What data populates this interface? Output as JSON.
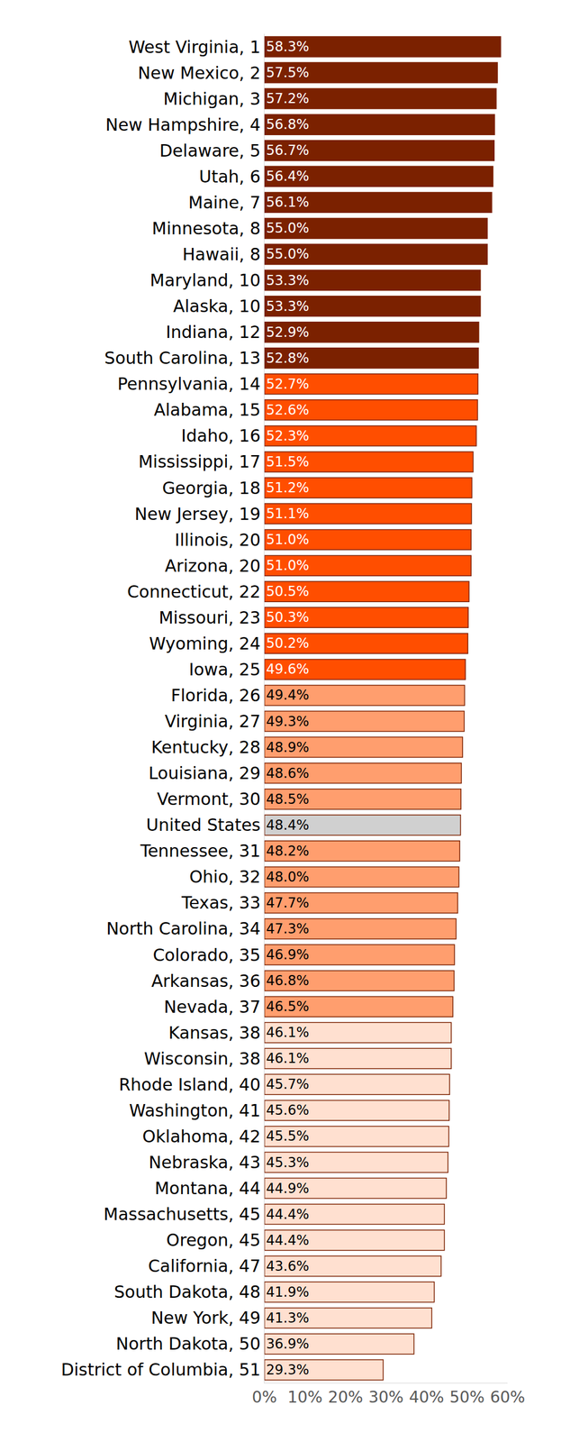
{
  "chart_data": {
    "type": "bar",
    "orientation": "horizontal",
    "categories": [
      "West Virginia, 1",
      "New Mexico, 2",
      "Michigan, 3",
      "New Hampshire, 4",
      "Delaware, 5",
      "Utah, 6",
      "Maine, 7",
      "Minnesota, 8",
      "Hawaii, 8",
      "Maryland, 10",
      "Alaska, 10",
      "Indiana, 12",
      "South Carolina, 13",
      "Pennsylvania, 14",
      "Alabama, 15",
      "Idaho, 16",
      "Mississippi, 17",
      "Georgia, 18",
      "New Jersey, 19",
      "Illinois, 20",
      "Arizona, 20",
      "Connecticut, 22",
      "Missouri, 23",
      "Wyoming, 24",
      "Iowa, 25",
      "Florida, 26",
      "Virginia, 27",
      "Kentucky, 28",
      "Louisiana, 29",
      "Vermont, 30",
      "United States",
      "Tennessee, 31",
      "Ohio, 32",
      "Texas, 33",
      "North Carolina, 34",
      "Colorado, 35",
      "Arkansas, 36",
      "Nevada, 37",
      "Kansas, 38",
      "Wisconsin, 38",
      "Rhode Island, 40",
      "Washington, 41",
      "Oklahoma, 42",
      "Nebraska, 43",
      "Montana, 44",
      "Massachusetts, 45",
      "Oregon, 45",
      "California, 47",
      "South Dakota, 48",
      "New York, 49",
      "North Dakota, 50",
      "District of Columbia, 51"
    ],
    "values": [
      58.3,
      57.5,
      57.2,
      56.8,
      56.7,
      56.4,
      56.1,
      55.0,
      55.0,
      53.3,
      53.3,
      52.9,
      52.8,
      52.7,
      52.6,
      52.3,
      51.5,
      51.2,
      51.1,
      51.0,
      51.0,
      50.5,
      50.3,
      50.2,
      49.6,
      49.4,
      49.3,
      48.9,
      48.6,
      48.5,
      48.4,
      48.2,
      48.0,
      47.7,
      47.3,
      46.9,
      46.8,
      46.5,
      46.1,
      46.1,
      45.7,
      45.6,
      45.5,
      45.3,
      44.9,
      44.4,
      44.4,
      43.6,
      41.9,
      41.3,
      36.9,
      29.3
    ],
    "value_labels": [
      "58.3%",
      "57.5%",
      "57.2%",
      "56.8%",
      "56.7%",
      "56.4%",
      "56.1%",
      "55.0%",
      "55.0%",
      "53.3%",
      "53.3%",
      "52.9%",
      "52.8%",
      "52.7%",
      "52.6%",
      "52.3%",
      "51.5%",
      "51.2%",
      "51.1%",
      "51.0%",
      "51.0%",
      "50.5%",
      "50.3%",
      "50.2%",
      "49.6%",
      "49.4%",
      "49.3%",
      "48.9%",
      "48.6%",
      "48.5%",
      "48.4%",
      "48.2%",
      "48.0%",
      "47.7%",
      "47.3%",
      "46.9%",
      "46.8%",
      "46.5%",
      "46.1%",
      "46.1%",
      "45.7%",
      "45.6%",
      "45.5%",
      "45.3%",
      "44.9%",
      "44.4%",
      "44.4%",
      "43.6%",
      "41.9%",
      "41.3%",
      "36.9%",
      "29.3%"
    ],
    "colors": [
      "#7b2100",
      "#7b2100",
      "#7b2100",
      "#7b2100",
      "#7b2100",
      "#7b2100",
      "#7b2100",
      "#7b2100",
      "#7b2100",
      "#7b2100",
      "#7b2100",
      "#7b2100",
      "#7b2100",
      "#ff4e00",
      "#ff4e00",
      "#ff4e00",
      "#ff4e00",
      "#ff4e00",
      "#ff4e00",
      "#ff4e00",
      "#ff4e00",
      "#ff4e00",
      "#ff4e00",
      "#ff4e00",
      "#ff4e00",
      "#ff9e6e",
      "#ff9e6e",
      "#ff9e6e",
      "#ff9e6e",
      "#ff9e6e",
      "#d0d0d0",
      "#ff9e6e",
      "#ff9e6e",
      "#ff9e6e",
      "#ff9e6e",
      "#ff9e6e",
      "#ff9e6e",
      "#ff9e6e",
      "#ffe0d0",
      "#ffe0d0",
      "#ffe0d0",
      "#ffe0d0",
      "#ffe0d0",
      "#ffe0d0",
      "#ffe0d0",
      "#ffe0d0",
      "#ffe0d0",
      "#ffe0d0",
      "#ffe0d0",
      "#ffe0d0",
      "#ffe0d0",
      "#ffe0d0"
    ],
    "xlim": [
      0,
      60
    ],
    "xticks": [
      {
        "value": 0,
        "label": "0%"
      },
      {
        "value": 10,
        "label": "10%"
      },
      {
        "value": 20,
        "label": "20%"
      },
      {
        "value": 30,
        "label": "30%"
      },
      {
        "value": 40,
        "label": "40%"
      },
      {
        "value": 50,
        "label": "50%"
      },
      {
        "value": 60,
        "label": "60%"
      }
    ],
    "grid": false,
    "data_labels": true
  }
}
